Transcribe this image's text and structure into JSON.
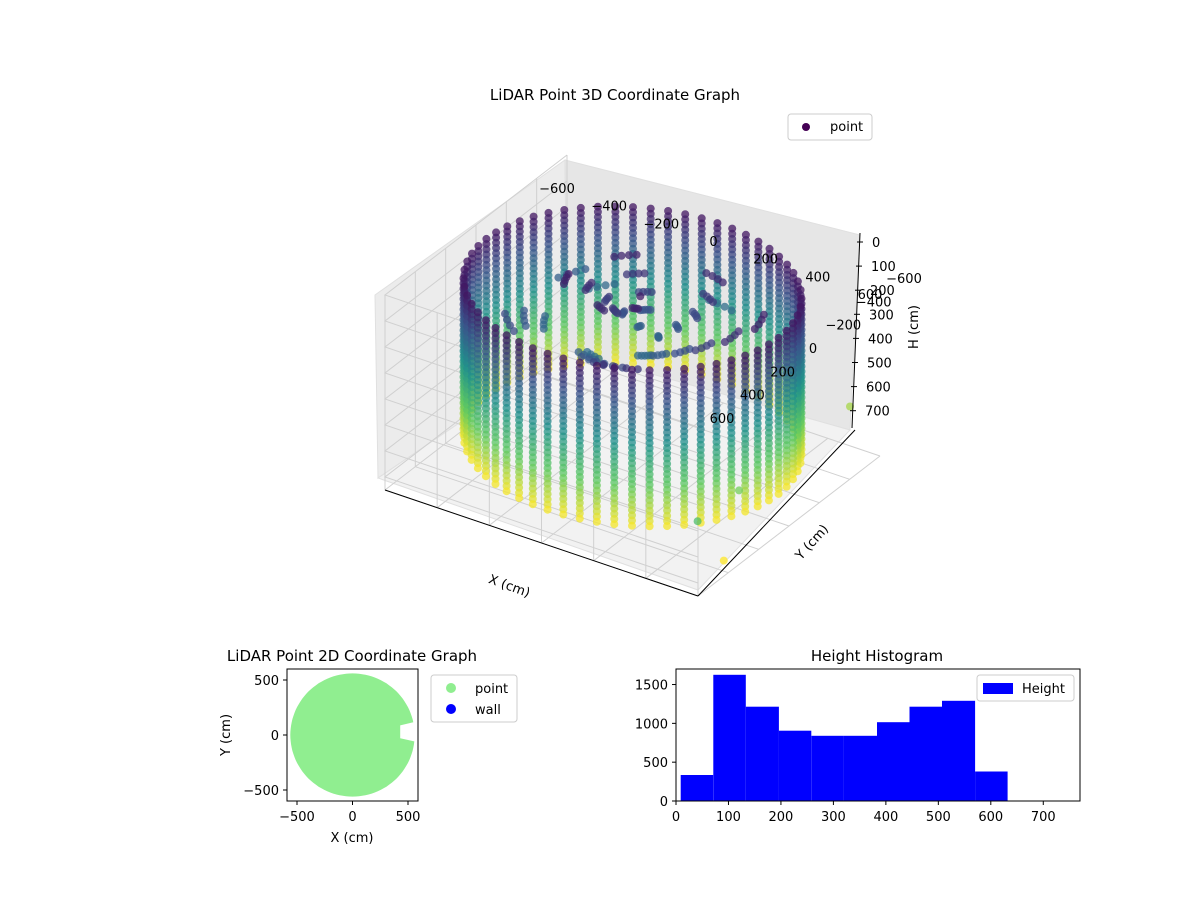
{
  "chart_data": [
    {
      "type": "scatter",
      "projection": "3d",
      "title": "LiDAR Point 3D Coordinate Graph",
      "xlabel": "X (cm)",
      "ylabel": "Y (cm)",
      "zlabel": "H (cm)",
      "xticks": [
        "−600",
        "−400",
        "−200",
        "0",
        "200",
        "400",
        "600"
      ],
      "yticks": [
        "−600",
        "−400",
        "−200",
        "0",
        "200",
        "400",
        "600"
      ],
      "zticks": [
        "0",
        "100",
        "200",
        "300",
        "400",
        "500",
        "600",
        "700"
      ],
      "xlim": [
        -600,
        600
      ],
      "ylim": [
        -600,
        600
      ],
      "zlim": [
        0,
        750
      ],
      "z_inverted": true,
      "grid": true,
      "colormap": "viridis",
      "legend": {
        "entries": [
          "point"
        ],
        "placement": "top-right"
      },
      "series": [
        {
          "name": "point",
          "description_points": "circular wall of vertical point columns, radius ~560 cm, heights 0-650 cm, plus dense roof/clutter near center at low H",
          "outliers": [
            [
              560,
              260,
              510
            ],
            [
              600,
              430,
              690
            ],
            [
              520,
              -540,
              560
            ],
            [
              610,
              620,
              450
            ]
          ]
        }
      ]
    },
    {
      "type": "scatter",
      "title": "LiDAR Point 2D Coordinate Graph",
      "xlabel": "X (cm)",
      "ylabel": "Y (cm)",
      "xticks": [
        "−500",
        "0",
        "500"
      ],
      "yticks": [
        "−500",
        "0",
        "500"
      ],
      "xlim": [
        -590,
        590
      ],
      "ylim": [
        -600,
        600
      ],
      "legend": {
        "entries": [
          "point",
          "wall"
        ],
        "placement": "outside-right"
      },
      "series": [
        {
          "name": "point",
          "color": "#90ee90",
          "shape": "disc radius ~560 with notch at X 430-590, Y -60..110"
        },
        {
          "name": "wall",
          "color": "#0000ff",
          "values": []
        }
      ]
    },
    {
      "type": "bar",
      "subtype": "histogram",
      "title": "Height Histogram",
      "xticks": [
        "0",
        "100",
        "200",
        "300",
        "400",
        "500",
        "600",
        "700"
      ],
      "yticks": [
        "0",
        "500",
        "1000",
        "1500"
      ],
      "xlim": [
        0,
        770
      ],
      "ylim": [
        0,
        1700
      ],
      "legend": {
        "entries": [
          "Height"
        ],
        "placement": "top-right"
      },
      "series": [
        {
          "name": "Height",
          "color": "#0000ff",
          "bins": [
            {
              "x0": 9,
              "x1": 71,
              "value": 335
            },
            {
              "x0": 71,
              "x1": 133,
              "value": 1625
            },
            {
              "x0": 133,
              "x1": 196,
              "value": 1215
            },
            {
              "x0": 196,
              "x1": 258,
              "value": 905
            },
            {
              "x0": 258,
              "x1": 320,
              "value": 840
            },
            {
              "x0": 320,
              "x1": 383,
              "value": 840
            },
            {
              "x0": 383,
              "x1": 445,
              "value": 1015
            },
            {
              "x0": 445,
              "x1": 507,
              "value": 1215
            },
            {
              "x0": 507,
              "x1": 570,
              "value": 1290
            },
            {
              "x0": 570,
              "x1": 632,
              "value": 380
            }
          ]
        }
      ]
    }
  ]
}
